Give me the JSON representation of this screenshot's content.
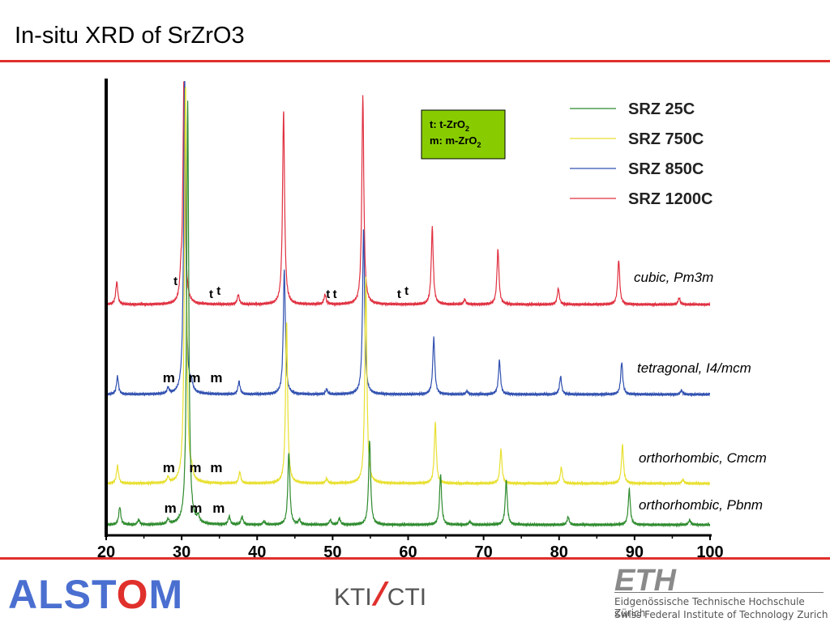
{
  "slide": {
    "title": "In-situ XRD of SrZrO3"
  },
  "chart_data": {
    "type": "line",
    "title": "",
    "xlabel": "",
    "ylabel": "",
    "xlim": [
      20,
      100
    ],
    "x_ticks": [
      20,
      30,
      40,
      50,
      60,
      70,
      80,
      90,
      100
    ],
    "grid": false,
    "legend_position": "top-right",
    "legend": [
      {
        "name": "SRZ 25C",
        "color": "#2e8b2e"
      },
      {
        "name": "SRZ 750C",
        "color": "#e8e030"
      },
      {
        "name": "SRZ 850C",
        "color": "#3050b0"
      },
      {
        "name": "SRZ 1200C",
        "color": "#e03040"
      }
    ],
    "info_box": {
      "line1_prefix": "t: t-ZrO",
      "line1_sub": "2",
      "line2_prefix": "m: m-ZrO",
      "line2_sub": "2",
      "background": "#88cc00"
    },
    "series": [
      {
        "name": "SRZ 1200C",
        "color": "#e03040",
        "phase": "cubic, Pm3m",
        "peaks": [
          [
            21.4,
            28
          ],
          [
            29.9,
            25
          ],
          [
            30.3,
            275
          ],
          [
            37.5,
            12
          ],
          [
            43.5,
            240
          ],
          [
            49.0,
            12
          ],
          [
            54.0,
            258
          ],
          [
            63.2,
            95
          ],
          [
            67.5,
            6
          ],
          [
            71.9,
            68
          ],
          [
            79.9,
            20
          ],
          [
            87.9,
            55
          ],
          [
            95.9,
            8
          ]
        ]
      },
      {
        "name": "SRZ 850C",
        "color": "#3050b0",
        "phase": "tetragonal, I4/mcm",
        "peaks": [
          [
            21.5,
            22
          ],
          [
            28.2,
            7
          ],
          [
            30.4,
            395
          ],
          [
            31.3,
            10
          ],
          [
            37.6,
            16
          ],
          [
            43.6,
            155
          ],
          [
            49.2,
            6
          ],
          [
            54.1,
            205
          ],
          [
            63.4,
            70
          ],
          [
            67.8,
            4
          ],
          [
            72.1,
            42
          ],
          [
            80.2,
            22
          ],
          [
            88.3,
            40
          ],
          [
            96.2,
            5
          ]
        ]
      },
      {
        "name": "SRZ 750C",
        "color": "#e8e030",
        "phase": "orthorhombic, Cmcm",
        "peaks": [
          [
            21.5,
            22
          ],
          [
            28.2,
            7
          ],
          [
            30.5,
            495
          ],
          [
            31.3,
            10
          ],
          [
            37.7,
            14
          ],
          [
            43.9,
            200
          ],
          [
            49.2,
            6
          ],
          [
            54.4,
            255
          ],
          [
            63.6,
            75
          ],
          [
            72.3,
            42
          ],
          [
            80.3,
            20
          ],
          [
            88.4,
            48
          ],
          [
            96.4,
            5
          ]
        ]
      },
      {
        "name": "SRZ 25C",
        "color": "#2e8b2e",
        "phase": "orthorhombic, Pbnm",
        "peaks": [
          [
            21.8,
            22
          ],
          [
            24.3,
            6
          ],
          [
            28.2,
            6
          ],
          [
            30.8,
            525
          ],
          [
            32.2,
            8
          ],
          [
            36.3,
            10
          ],
          [
            38.0,
            10
          ],
          [
            40.9,
            4
          ],
          [
            44.2,
            90
          ],
          [
            45.6,
            6
          ],
          [
            49.7,
            6
          ],
          [
            50.9,
            8
          ],
          [
            54.9,
            105
          ],
          [
            64.3,
            62
          ],
          [
            68.2,
            4
          ],
          [
            73.0,
            55
          ],
          [
            81.2,
            10
          ],
          [
            89.3,
            44
          ],
          [
            97.3,
            6
          ]
        ]
      }
    ],
    "annotations": [
      {
        "text": "t",
        "x": 29.2,
        "series": "SRZ 1200C"
      },
      {
        "text": "t",
        "x": 33.9,
        "series": "SRZ 1200C"
      },
      {
        "text": "t",
        "x": 34.9,
        "series": "SRZ 1200C"
      },
      {
        "text": "t",
        "x": 49.4,
        "series": "SRZ 1200C"
      },
      {
        "text": "t",
        "x": 50.3,
        "series": "SRZ 1200C"
      },
      {
        "text": "t",
        "x": 58.8,
        "series": "SRZ 1200C"
      },
      {
        "text": "t",
        "x": 59.8,
        "series": "SRZ 1200C"
      },
      {
        "text": "m",
        "x": 28.3,
        "series": "SRZ 850C"
      },
      {
        "text": "m",
        "x": 31.7,
        "series": "SRZ 850C"
      },
      {
        "text": "m",
        "x": 34.6,
        "series": "SRZ 850C"
      },
      {
        "text": "m",
        "x": 28.3,
        "series": "SRZ 750C"
      },
      {
        "text": "m",
        "x": 31.8,
        "series": "SRZ 750C"
      },
      {
        "text": "m",
        "x": 34.6,
        "series": "SRZ 750C"
      },
      {
        "text": "m",
        "x": 28.5,
        "series": "SRZ 25C"
      },
      {
        "text": "m",
        "x": 31.9,
        "series": "SRZ 25C"
      },
      {
        "text": "m",
        "x": 34.9,
        "series": "SRZ 25C"
      }
    ]
  },
  "footer": {
    "alstom_pre": "ALST",
    "alstom_o": "O",
    "alstom_post": "M",
    "kti_left": "KTI",
    "kti_right": "CTI",
    "eth": "ETH",
    "eth_line1": "Eidgenössische Technische Hochschule Zürich",
    "eth_line2": "Swiss Federal Institute of Technology Zurich"
  }
}
